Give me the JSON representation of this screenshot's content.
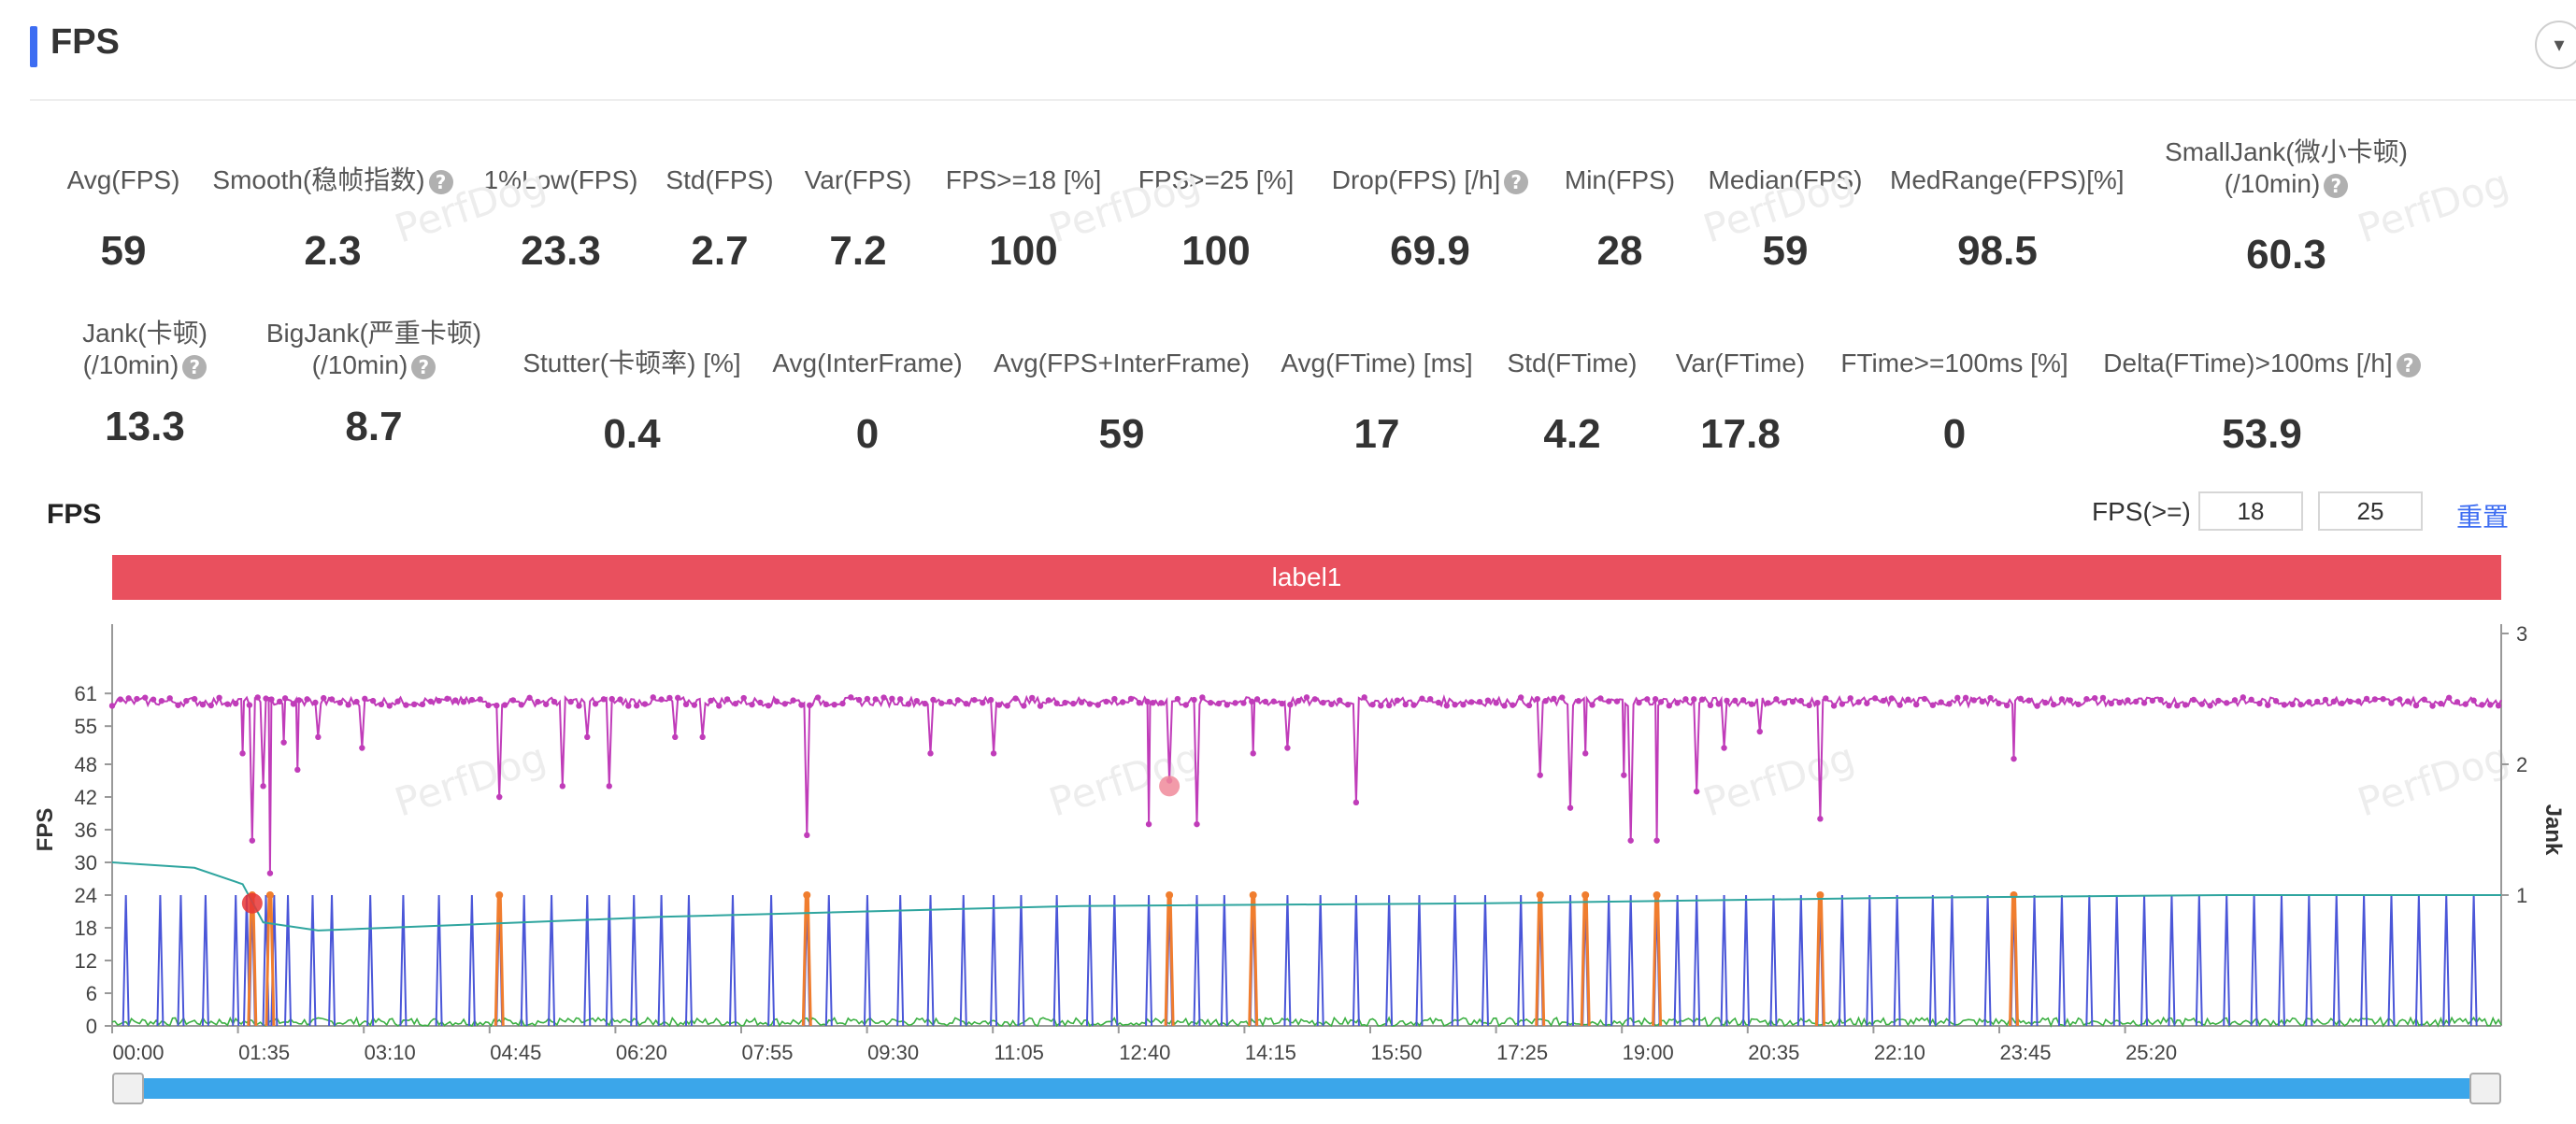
{
  "header": {
    "title": "FPS",
    "collapse_icon": "chevron-down-icon"
  },
  "metrics_row1": [
    {
      "label": "Avg(FPS)",
      "value": "59",
      "help": false
    },
    {
      "label": "Smooth(稳帧指数)",
      "value": "2.3",
      "help": true
    },
    {
      "label": "1%Low(FPS)",
      "value": "23.3",
      "help": false
    },
    {
      "label": "Std(FPS)",
      "value": "2.7",
      "help": false
    },
    {
      "label": "Var(FPS)",
      "value": "7.2",
      "help": false
    },
    {
      "label": "FPS>=18 [%]",
      "value": "100",
      "help": false
    },
    {
      "label": "FPS>=25 [%]",
      "value": "100",
      "help": false
    },
    {
      "label": "Drop(FPS) [/h]",
      "value": "69.9",
      "help": true
    },
    {
      "label": "Min(FPS)",
      "value": "28",
      "help": false
    },
    {
      "label": "Median(FPS)",
      "value": "59",
      "help": false
    },
    {
      "label": "MedRange(FPS)[%]",
      "value": "98.5",
      "help": false
    },
    {
      "label": "SmallJank(微小卡顿)",
      "label2": "(/10min)",
      "value": "60.3",
      "help": true
    }
  ],
  "metrics_row2": [
    {
      "label": "Jank(卡顿)",
      "label2": "(/10min)",
      "value": "13.3",
      "help": true
    },
    {
      "label": "BigJank(严重卡顿)",
      "label2": "(/10min)",
      "value": "8.7",
      "help": true
    },
    {
      "label": "Stutter(卡顿率) [%]",
      "value": "0.4",
      "help": false
    },
    {
      "label": "Avg(InterFrame)",
      "value": "0",
      "help": false
    },
    {
      "label": "Avg(FPS+InterFrame)",
      "value": "59",
      "help": false
    },
    {
      "label": "Avg(FTime) [ms]",
      "value": "17",
      "help": false
    },
    {
      "label": "Std(FTime)",
      "value": "4.2",
      "help": false
    },
    {
      "label": "Var(FTime)",
      "value": "17.8",
      "help": false
    },
    {
      "label": "FTime>=100ms [%]",
      "value": "0",
      "help": false
    },
    {
      "label": "Delta(FTime)>100ms [/h]",
      "value": "53.9",
      "help": true
    }
  ],
  "watermark": "PerfDog",
  "chart_section": {
    "title": "FPS",
    "threshold_label": "FPS(>=)",
    "threshold_low": "18",
    "threshold_high": "25",
    "reset_label": "重置",
    "band_label": "label1"
  },
  "chart_data": {
    "type": "line",
    "x_ticks": [
      "00:00",
      "01:35",
      "03:10",
      "04:45",
      "06:20",
      "07:55",
      "09:30",
      "11:05",
      "12:40",
      "14:15",
      "15:50",
      "17:25",
      "19:00",
      "20:35",
      "22:10",
      "23:45",
      "25:20"
    ],
    "y_left_label": "FPS",
    "y_left_ticks": [
      0,
      6,
      12,
      18,
      24,
      30,
      36,
      42,
      48,
      55,
      61
    ],
    "y_right_label": "Jank",
    "y_right_ticks": [
      1,
      2,
      3
    ],
    "x_range_seconds": [
      0,
      1740
    ],
    "series": [
      {
        "name": "FPS",
        "color": "#c03cb9",
        "baseline": 59.5,
        "dips": [
          [
            95,
            50
          ],
          [
            102,
            34
          ],
          [
            110,
            44
          ],
          [
            115,
            28
          ],
          [
            125,
            52
          ],
          [
            135,
            47
          ],
          [
            150,
            53
          ],
          [
            182,
            51
          ],
          [
            282,
            42
          ],
          [
            328,
            44
          ],
          [
            346,
            53
          ],
          [
            362,
            44
          ],
          [
            410,
            53
          ],
          [
            430,
            53
          ],
          [
            506,
            35
          ],
          [
            596,
            50
          ],
          [
            642,
            50
          ],
          [
            755,
            37
          ],
          [
            770,
            45
          ],
          [
            790,
            37
          ],
          [
            831,
            50
          ],
          [
            856,
            51
          ],
          [
            906,
            41
          ],
          [
            1040,
            46
          ],
          [
            1062,
            40
          ],
          [
            1073,
            50
          ],
          [
            1101,
            46
          ],
          [
            1106,
            34
          ],
          [
            1125,
            34
          ],
          [
            1154,
            43
          ],
          [
            1174,
            51
          ],
          [
            1200,
            54
          ],
          [
            1244,
            38
          ],
          [
            1385,
            49
          ]
        ]
      },
      {
        "name": "1%Low(FPS)",
        "color": "#2fa59f",
        "points": [
          [
            0,
            30
          ],
          [
            60,
            29
          ],
          [
            95,
            26
          ],
          [
            110,
            19
          ],
          [
            150,
            17.5
          ],
          [
            200,
            18
          ],
          [
            400,
            20
          ],
          [
            700,
            22
          ],
          [
            1000,
            22.5
          ],
          [
            1300,
            23.5
          ],
          [
            1540,
            24
          ],
          [
            1740,
            24
          ]
        ]
      }
    ],
    "jank_events_seconds": [
      10,
      35,
      50,
      68,
      90,
      98,
      102,
      112,
      118,
      128,
      146,
      160,
      188,
      212,
      238,
      262,
      282,
      300,
      320,
      346,
      362,
      380,
      400,
      420,
      452,
      480,
      506,
      522,
      550,
      574,
      596,
      620,
      642,
      662,
      688,
      712,
      730,
      755,
      770,
      790,
      810,
      831,
      856,
      880,
      906,
      930,
      952,
      978,
      1000,
      1026,
      1040,
      1062,
      1073,
      1090,
      1106,
      1125,
      1140,
      1154,
      1174,
      1190,
      1210,
      1230,
      1244,
      1260,
      1280,
      1300,
      1326,
      1340,
      1366,
      1385,
      1400,
      1420,
      1440,
      1460,
      1480,
      1500,
      1520,
      1540,
      1560,
      1580,
      1600,
      1620,
      1640,
      1660,
      1680,
      1700,
      1720
    ],
    "bigjank_events_seconds": [
      102,
      115,
      282,
      506,
      770,
      831,
      1040,
      1073,
      1125,
      1244,
      1385
    ],
    "markers": [
      {
        "x": 102,
        "y": 22.5,
        "color": "#e73535"
      },
      {
        "x": 770,
        "y": 44,
        "color": "#f08a9a"
      }
    ],
    "grid": false
  }
}
